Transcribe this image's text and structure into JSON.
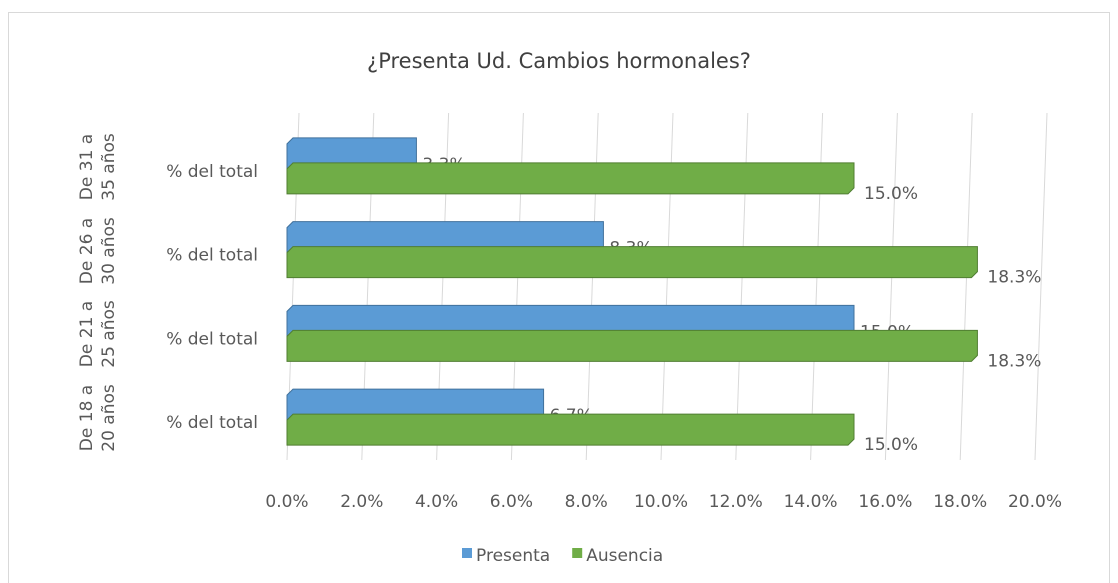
{
  "chart_data": {
    "type": "bar",
    "orientation": "horizontal",
    "title": "¿Presenta Ud. Cambios hormonales?",
    "groups": [
      "De 18 a 20 años",
      "De 21 a 25 años",
      "De 26 a 30 años",
      "De 31 a 35 años"
    ],
    "categories": [
      "% del total",
      "% del total",
      "% del total",
      "% del total"
    ],
    "series": [
      {
        "name": "Presenta",
        "color": "#5b9bd5",
        "values": [
          6.7,
          15.0,
          8.3,
          3.3
        ],
        "value_labels": [
          "6.7%",
          "15.0%",
          "8.3%",
          "3.3%"
        ]
      },
      {
        "name": "Ausencia",
        "color": "#70ad47",
        "values": [
          15.0,
          18.3,
          18.3,
          15.0
        ],
        "value_labels": [
          "15.0%",
          "18.3%",
          "18.3%",
          "15.0%"
        ]
      }
    ],
    "xlim": [
      0,
      20
    ],
    "xticks": [
      {
        "value": 0,
        "label": "0.0%"
      },
      {
        "value": 2,
        "label": "2.0%"
      },
      {
        "value": 4,
        "label": "4.0%"
      },
      {
        "value": 6,
        "label": "6.0%"
      },
      {
        "value": 8,
        "label": "8.0%"
      },
      {
        "value": 10,
        "label": "10.0%"
      },
      {
        "value": 12,
        "label": "12.0%"
      },
      {
        "value": 14,
        "label": "14.0%"
      },
      {
        "value": 16,
        "label": "16.0%"
      },
      {
        "value": 18,
        "label": "18.0%"
      },
      {
        "value": 20,
        "label": "20.0%"
      }
    ],
    "grid": true,
    "legend": "bottom"
  }
}
